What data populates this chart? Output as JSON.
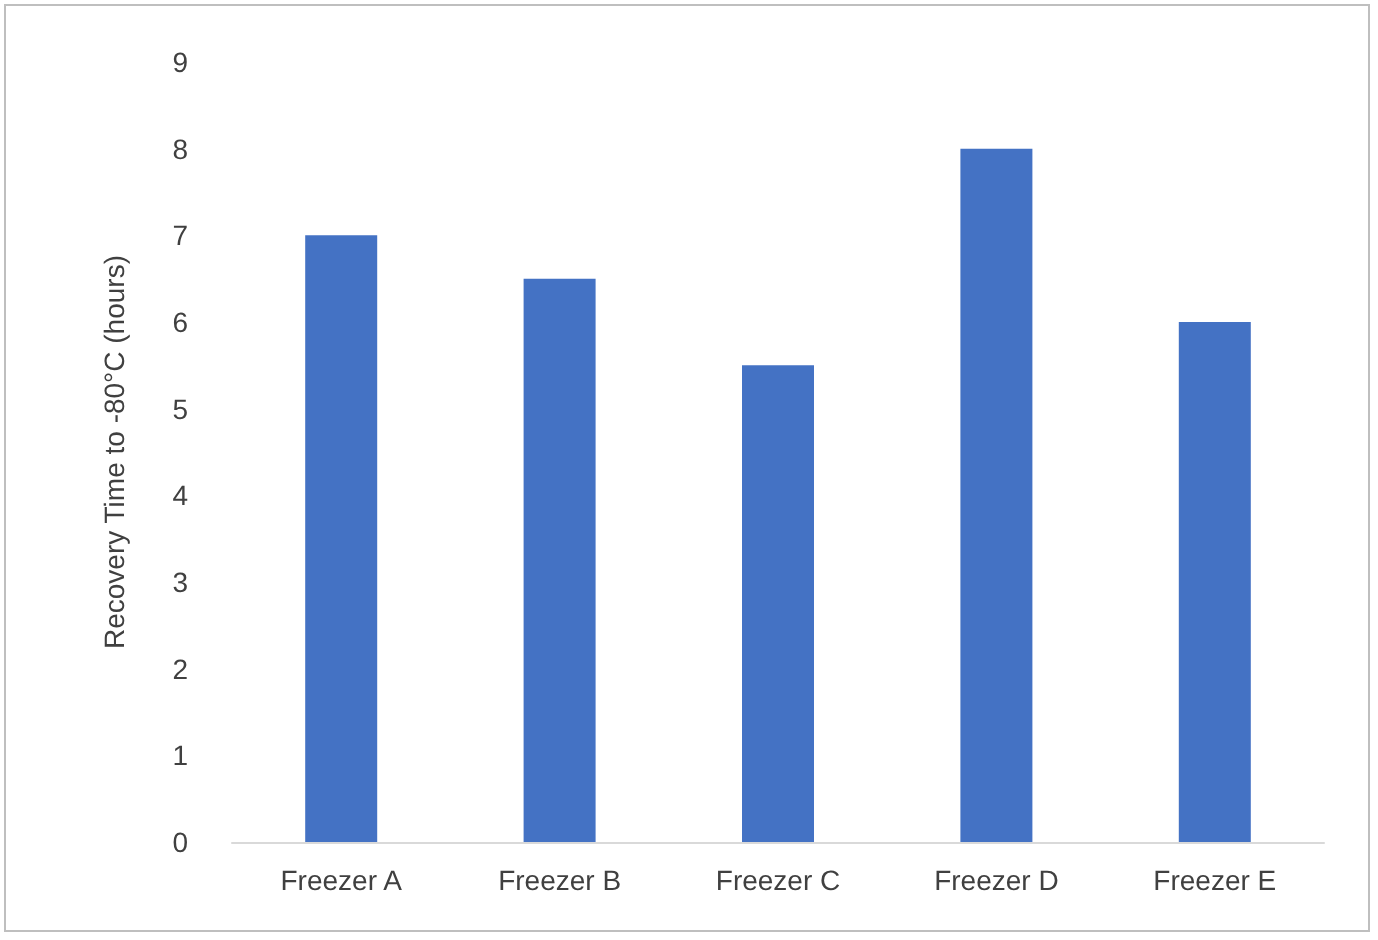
{
  "chart_data": {
    "type": "bar",
    "ylabel": "Recovery Time to -80°C (hours)",
    "categories": [
      "Freezer A",
      "Freezer B",
      "Freezer C",
      "Freezer D",
      "Freezer E"
    ],
    "values": [
      7,
      6.5,
      5.5,
      8,
      6
    ],
    "color": "#4472c4",
    "ylim": [
      0,
      9
    ],
    "yticks": [
      0,
      1,
      2,
      3,
      4,
      5,
      6,
      7,
      8,
      9
    ],
    "grid": false
  }
}
